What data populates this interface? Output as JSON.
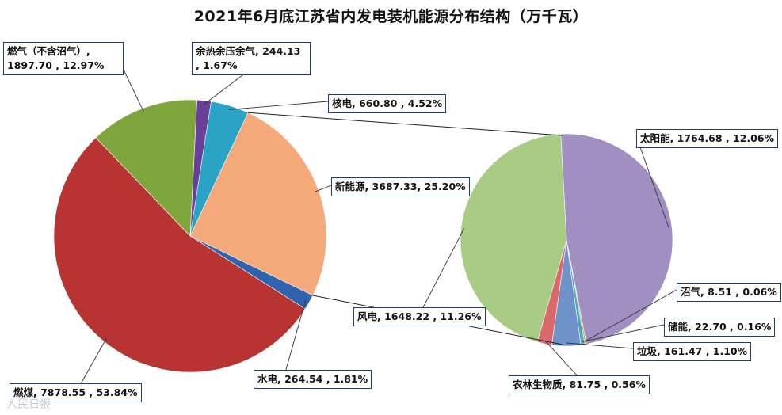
{
  "chart_data": {
    "type": "pie",
    "title": "2021年6月底江苏省内发电装机能源分布结构（万千瓦）",
    "main_pie": {
      "slices": [
        {
          "name": "新能源",
          "value": 3687.33,
          "percent": "25.20%",
          "label": "新能源, 3687.33, 25.20%",
          "color": "#f4a97a"
        },
        {
          "name": "水电",
          "value": 264.54,
          "percent": "1.81%",
          "label": "水电, 264.54 , 1.81%",
          "color": "#2f63ad"
        },
        {
          "name": "燃煤",
          "value": 7878.55,
          "percent": "53.84%",
          "label": "燃煤, 7878.55 , 53.84%",
          "color": "#b83432"
        },
        {
          "name": "燃气（不含沼气）",
          "value": 1897.7,
          "percent": "12.97%",
          "label": "燃气（不含沼气）, 1897.70 , 12.97%",
          "color": "#7ea63d"
        },
        {
          "name": "余热余压余气",
          "value": 244.13,
          "percent": "1.67%",
          "label": "余热余压余气, 244.13 , 1.67%",
          "color": "#6a3f98"
        },
        {
          "name": "核电",
          "value": 660.8,
          "percent": "4.52%",
          "label": "核电, 660.80 , 4.52%",
          "color": "#2aa3c6"
        }
      ]
    },
    "secondary_pie": {
      "of": "新能源",
      "slices": [
        {
          "name": "太阳能",
          "value": 1764.68,
          "percent": "12.06%",
          "label": "太阳能, 1764.68 , 12.06%",
          "color": "#a08fc0"
        },
        {
          "name": "沼气",
          "value": 8.51,
          "percent": "0.06%",
          "label": "沼气, 8.51 , 0.06%",
          "color": "#ccaa3a"
        },
        {
          "name": "储能",
          "value": 22.7,
          "percent": "0.16%",
          "label": "储能, 22.70 , 0.16%",
          "color": "#4aa9c0"
        },
        {
          "name": "垃圾",
          "value": 161.47,
          "percent": "1.10%",
          "label": "垃圾, 161.47 , 1.10%",
          "color": "#6f92c9"
        },
        {
          "name": "农林生物质",
          "value": 81.75,
          "percent": "0.56%",
          "label": "农林生物质, 81.75 , 0.56%",
          "color": "#d9686a"
        },
        {
          "name": "风电",
          "value": 1648.22,
          "percent": "11.26%",
          "label": "风电, 1648.22 , 11.26%",
          "color": "#a9cc85"
        }
      ]
    }
  },
  "watermark": "人民日报"
}
